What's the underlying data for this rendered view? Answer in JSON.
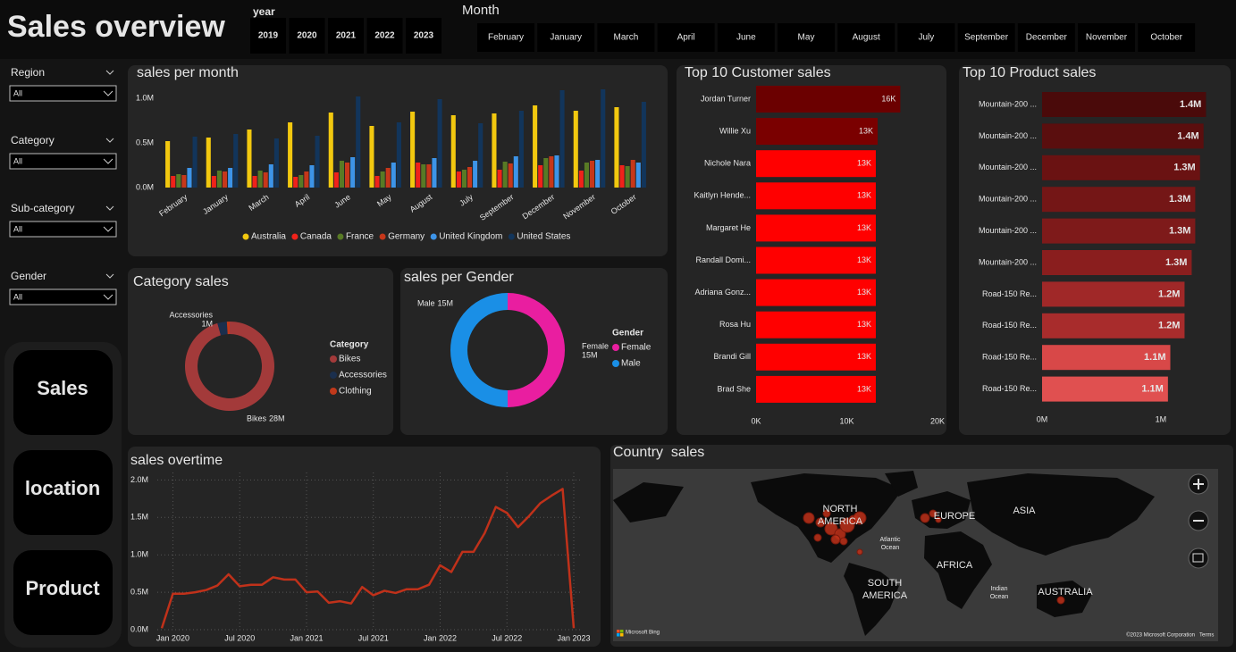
{
  "header": {
    "title": "Sales overview",
    "year_label": "year",
    "years": [
      "2019",
      "2020",
      "2021",
      "2022",
      "2023"
    ],
    "month_label": "Month",
    "months": [
      "February",
      "January",
      "March",
      "April",
      "June",
      "May",
      "August",
      "July",
      "September",
      "December",
      "November",
      "October"
    ]
  },
  "filters": [
    {
      "label": "Region",
      "value": "All"
    },
    {
      "label": "Category",
      "value": "All"
    },
    {
      "label": "Sub-category",
      "value": "All"
    },
    {
      "label": "Gender",
      "value": "All"
    }
  ],
  "nav": [
    "Sales",
    "location",
    "Product"
  ],
  "chart_data": [
    {
      "type": "bar",
      "title": "sales per month",
      "categories": [
        "February",
        "January",
        "March",
        "April",
        "June",
        "May",
        "August",
        "July",
        "September",
        "December",
        "November",
        "October"
      ],
      "series": [
        {
          "name": "Australia",
          "color": "#f2c80f",
          "values": [
            0.52,
            0.56,
            0.65,
            0.73,
            0.84,
            0.69,
            0.85,
            0.81,
            0.83,
            0.92,
            0.86,
            0.9
          ]
        },
        {
          "name": "Canada",
          "color": "#f0221a",
          "values": [
            0.13,
            0.13,
            0.13,
            0.12,
            0.17,
            0.13,
            0.28,
            0.18,
            0.2,
            0.25,
            0.19,
            0.25
          ]
        },
        {
          "name": "France",
          "color": "#587a25",
          "values": [
            0.15,
            0.19,
            0.19,
            0.14,
            0.3,
            0.18,
            0.26,
            0.2,
            0.29,
            0.33,
            0.28,
            0.24
          ]
        },
        {
          "name": "Germany",
          "color": "#c6371a",
          "values": [
            0.14,
            0.18,
            0.17,
            0.18,
            0.28,
            0.22,
            0.26,
            0.23,
            0.27,
            0.35,
            0.3,
            0.31
          ]
        },
        {
          "name": "United Kingdom",
          "color": "#3d94e8",
          "values": [
            0.22,
            0.22,
            0.26,
            0.25,
            0.34,
            0.28,
            0.33,
            0.3,
            0.35,
            0.36,
            0.31,
            0.28
          ]
        },
        {
          "name": "United States",
          "color": "#12355b",
          "values": [
            0.57,
            0.6,
            0.55,
            0.58,
            1.02,
            0.73,
            0.99,
            0.72,
            0.86,
            1.09,
            1.1,
            0.96
          ]
        }
      ],
      "ylim": [
        0,
        1.1
      ],
      "yticks": [
        {
          "value": 0,
          "label": "0.0M"
        },
        {
          "value": 0.5,
          "label": "0.5M"
        },
        {
          "value": 1,
          "label": "1.0M"
        }
      ],
      "grid": false
    },
    {
      "type": "donut",
      "title": "Category sales",
      "legend_title": "Category",
      "categories": [
        "Bikes",
        "Accessories",
        "Clothing"
      ],
      "values": [
        28,
        1,
        0.3
      ],
      "value_labels": [
        "28M",
        "1M",
        null
      ],
      "colors": [
        "#a33a3a",
        "#1b2f4d",
        "#c0391b"
      ]
    },
    {
      "type": "donut",
      "title": "sales per Gender",
      "legend_title": "Gender",
      "categories": [
        "Female",
        "Male"
      ],
      "values": [
        15,
        15
      ],
      "value_labels": [
        "15M",
        "15M"
      ],
      "colors": [
        "#e91ea0",
        "#1a8fe6"
      ]
    },
    {
      "type": "hbar",
      "title": "Top 10 Customer sales",
      "categories": [
        "Jordan Turner",
        "Willie Xu",
        "Nichole Nara",
        "Kaitlyn Hende...",
        "Margaret He",
        "Randall Domi...",
        "Adriana Gonz...",
        "Rosa Hu",
        "Brandi Gill",
        "Brad She"
      ],
      "values": [
        15.9,
        13.4,
        13.2,
        13.2,
        13.2,
        13.2,
        13.2,
        13.2,
        13.2,
        13.2
      ],
      "value_labels": [
        "16K",
        "13K",
        "13K",
        "13K",
        "13K",
        "13K",
        "13K",
        "13K",
        "13K",
        "13K"
      ],
      "colors": [
        "#6b0000",
        "#7a0000",
        "#ff0000",
        "#ff0000",
        "#ff0000",
        "#ff0000",
        "#ff0000",
        "#ff0000",
        "#ff0000",
        "#ff0000"
      ],
      "xlim": [
        0,
        20
      ],
      "xticks": [
        {
          "value": 0,
          "label": "0K"
        },
        {
          "value": 10,
          "label": "10K"
        },
        {
          "value": 20,
          "label": "20K"
        }
      ]
    },
    {
      "type": "hbar",
      "title": "Top 10 Product sales",
      "categories": [
        "Mountain-200 ...",
        "Mountain-200 ...",
        "Mountain-200 ...",
        "Mountain-200 ...",
        "Mountain-200 ...",
        "Mountain-200 ...",
        "Road-150 Re...",
        "Road-150 Re...",
        "Road-150 Re...",
        "Road-150 Re..."
      ],
      "values": [
        1.38,
        1.36,
        1.33,
        1.29,
        1.29,
        1.26,
        1.2,
        1.2,
        1.08,
        1.06
      ],
      "value_labels": [
        "1.4M",
        "1.4M",
        "1.3M",
        "1.3M",
        "1.3M",
        "1.3M",
        "1.2M",
        "1.2M",
        "1.1M",
        "1.1M"
      ],
      "colors": [
        "#4a0a0a",
        "#5a0e0e",
        "#6a1212",
        "#741616",
        "#7e1a1a",
        "#8a1e1e",
        "#a02828",
        "#a82c2c",
        "#d84848",
        "#e05050"
      ],
      "xlim": [
        0,
        1.46
      ],
      "xticks": [
        {
          "value": 0,
          "label": "0M"
        },
        {
          "value": 1,
          "label": "1M"
        }
      ]
    },
    {
      "type": "line",
      "title": "sales overtime",
      "color": "#c0311a",
      "x": [
        "2019-12",
        "2020-01",
        "2020-02",
        "2020-03",
        "2020-04",
        "2020-05",
        "2020-06",
        "2020-07",
        "2020-08",
        "2020-09",
        "2020-10",
        "2020-11",
        "2020-12",
        "2021-01",
        "2021-02",
        "2021-03",
        "2021-04",
        "2021-05",
        "2021-06",
        "2021-07",
        "2021-08",
        "2021-09",
        "2021-10",
        "2021-11",
        "2021-12",
        "2022-01",
        "2022-02",
        "2022-03",
        "2022-04",
        "2022-05",
        "2022-06",
        "2022-07",
        "2022-08",
        "2022-09",
        "2022-10",
        "2022-11",
        "2022-12",
        "2023-01"
      ],
      "values": [
        0.02,
        0.48,
        0.48,
        0.5,
        0.53,
        0.59,
        0.74,
        0.58,
        0.6,
        0.6,
        0.7,
        0.67,
        0.67,
        0.5,
        0.51,
        0.36,
        0.38,
        0.35,
        0.57,
        0.46,
        0.52,
        0.49,
        0.54,
        0.54,
        0.6,
        0.86,
        0.77,
        1.04,
        1.04,
        1.29,
        1.64,
        1.56,
        1.37,
        1.52,
        1.69,
        1.79,
        1.88,
        0.02
      ],
      "xlim": [
        "2019-12",
        "2023-01"
      ],
      "xticks": [
        {
          "value": "2020-01",
          "label": "Jan 2020"
        },
        {
          "value": "2020-07",
          "label": "Jul 2020"
        },
        {
          "value": "2021-01",
          "label": "Jan 2021"
        },
        {
          "value": "2021-07",
          "label": "Jul 2021"
        },
        {
          "value": "2022-01",
          "label": "Jan 2022"
        },
        {
          "value": "2022-07",
          "label": "Jul 2022"
        },
        {
          "value": "2023-01",
          "label": "Jan 2023"
        }
      ],
      "ylim": [
        0,
        2.1
      ],
      "yticks": [
        {
          "value": 0,
          "label": "0.0M"
        },
        {
          "value": 0.5,
          "label": "0.5M"
        },
        {
          "value": 1,
          "label": "1.0M"
        },
        {
          "value": 1.5,
          "label": "1.5M"
        },
        {
          "value": 2,
          "label": "2.0M"
        }
      ],
      "grid": true
    }
  ],
  "map": {
    "title": "Country  sales",
    "labels": [
      "NORTH",
      "AMERICA",
      "EUROPE",
      "ASIA",
      "AFRICA",
      "SOUTH",
      "AMERICA",
      "AUSTRALIA",
      "Atlantic",
      "Ocean",
      "Indian",
      "Ocean"
    ],
    "attribution": "Microsoft Bing",
    "copyright": "©2023 Microsoft Corporation",
    "terms": "Terms"
  }
}
